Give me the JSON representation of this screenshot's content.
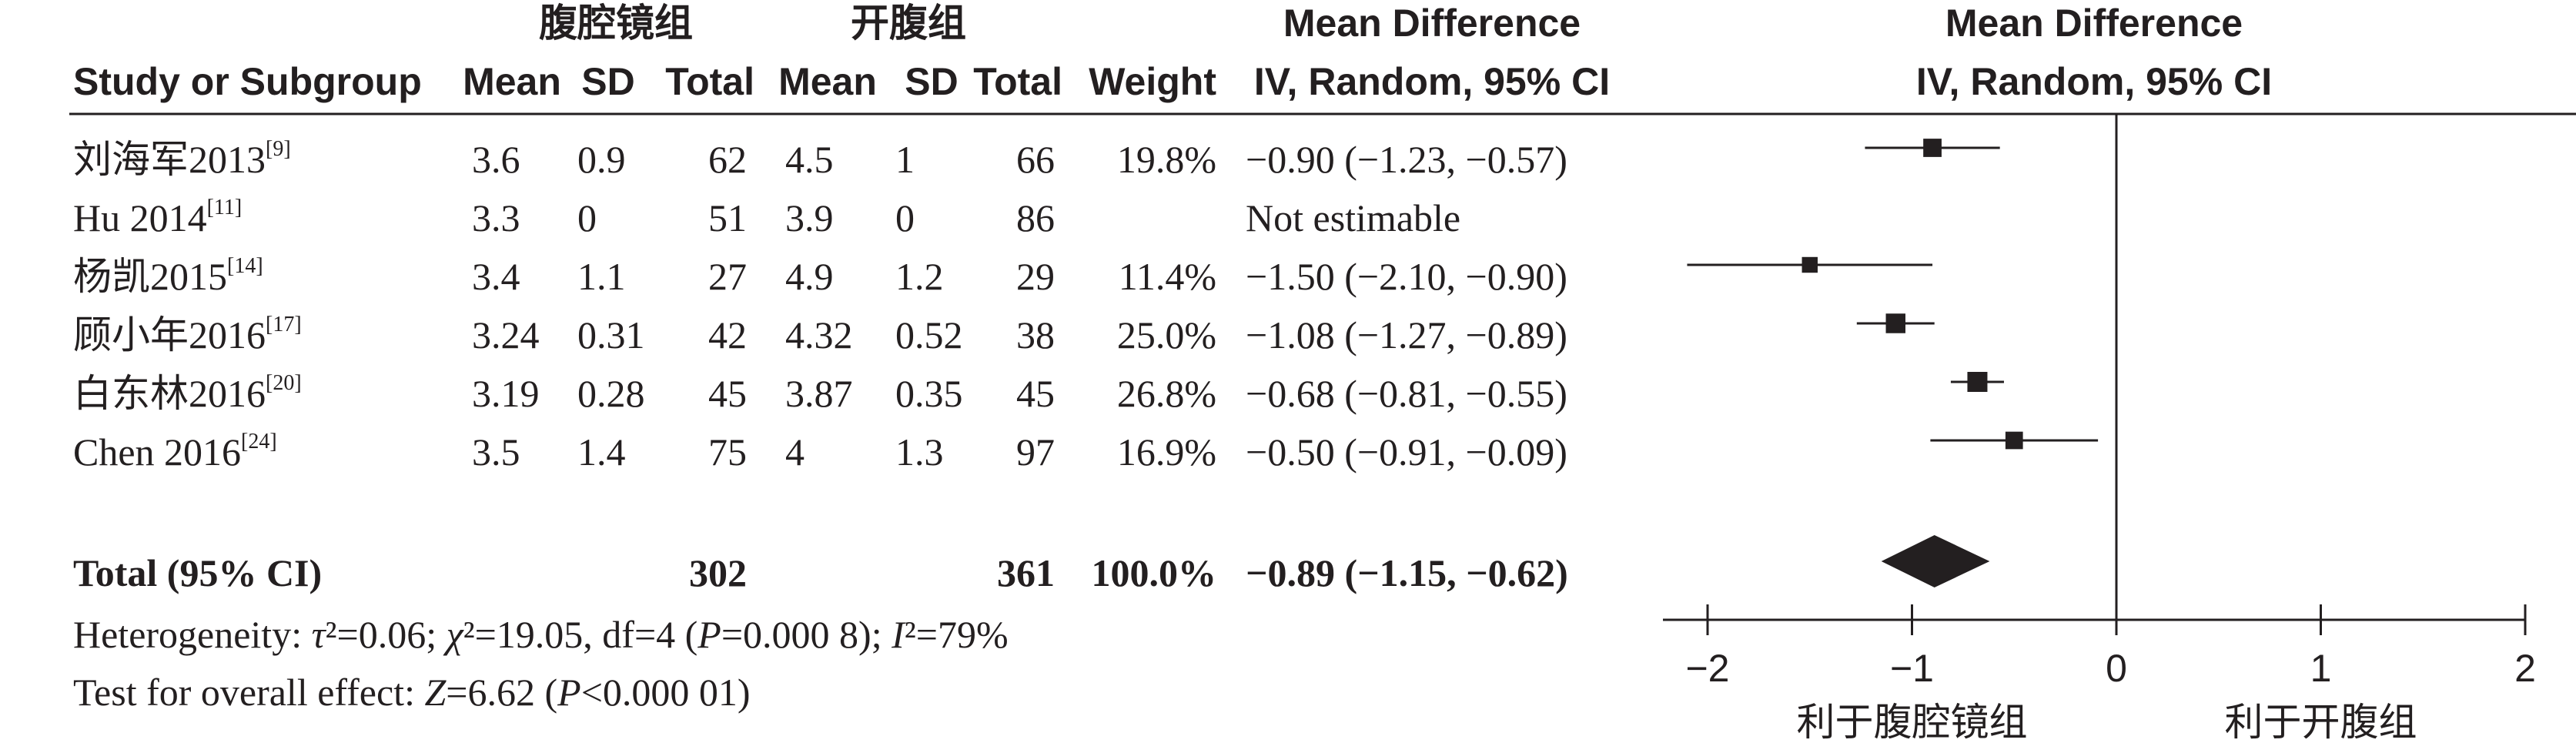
{
  "header": {
    "group1_name": "腹腔镜组",
    "group2_name": "开腹组",
    "effect_title": "Mean Difference",
    "effect_method": "IV, Random, 95% CI",
    "plot_title": "Mean Difference",
    "plot_method": "IV, Random, 95% CI",
    "col_study": "Study or Subgroup",
    "col_mean1": "Mean",
    "col_sd1": "SD",
    "col_total1": "Total",
    "col_mean2": "Mean",
    "col_sd2": "SD",
    "col_total2": "Total",
    "col_weight": "Weight"
  },
  "studies": [
    {
      "name": "刘海军2013",
      "ref": "[9]",
      "mean1": "3.6",
      "sd1": "0.9",
      "total1": "62",
      "mean2": "4.5",
      "sd2": "1",
      "total2": "66",
      "weight": "19.8%",
      "ci_text": "−0.90 (−1.23, −0.57)"
    },
    {
      "name": "Hu 2014",
      "ref": "[11]",
      "mean1": "3.3",
      "sd1": "0",
      "total1": "51",
      "mean2": "3.9",
      "sd2": "0",
      "total2": "86",
      "weight": "",
      "ci_text": "Not estimable"
    },
    {
      "name": "杨凯2015",
      "ref": "[14]",
      "mean1": "3.4",
      "sd1": "1.1",
      "total1": "27",
      "mean2": "4.9",
      "sd2": "1.2",
      "total2": "29",
      "weight": "11.4%",
      "ci_text": "−1.50 (−2.10, −0.90)"
    },
    {
      "name": "顾小年2016",
      "ref": "[17]",
      "mean1": "3.24",
      "sd1": "0.31",
      "total1": "42",
      "mean2": "4.32",
      "sd2": "0.52",
      "total2": "38",
      "weight": "25.0%",
      "ci_text": "−1.08 (−1.27, −0.89)"
    },
    {
      "name": "白东林2016",
      "ref": "[20]",
      "mean1": "3.19",
      "sd1": "0.28",
      "total1": "45",
      "mean2": "3.87",
      "sd2": "0.35",
      "total2": "45",
      "weight": "26.8%",
      "ci_text": "−0.68 (−0.81, −0.55)"
    },
    {
      "name": "Chen 2016",
      "ref": "[24]",
      "mean1": "3.5",
      "sd1": "1.4",
      "total1": "75",
      "mean2": "4",
      "sd2": "1.3",
      "total2": "97",
      "weight": "16.9%",
      "ci_text": "−0.50 (−0.91, −0.09)"
    }
  ],
  "total": {
    "label": "Total (95% CI)",
    "total1": "302",
    "total2": "361",
    "weight": "100.0%",
    "ci_text": "−0.89 (−1.15, −0.62)"
  },
  "footer": {
    "het_prefix": "Heterogeneity: ",
    "tau": "τ",
    "tau_rest": "²=0.06; ",
    "chi": "χ",
    "chi_rest": "²=19.05, df=4 (",
    "p1": "P",
    "p1_rest": "=0.000 8); ",
    "i": "I",
    "i_rest": "²=79%",
    "test_prefix": "Test for overall effect: ",
    "z": "Z",
    "z_rest": "=6.62 (",
    "p2": "P",
    "p2_rest": "<0.000 01)"
  },
  "colors": {
    "text": "#231f20",
    "marker": "#231f20"
  },
  "chart_data": {
    "type": "forest",
    "xlim": [
      -2,
      2
    ],
    "xticks": [
      -2,
      -1,
      0,
      1,
      2
    ],
    "xtick_labels": [
      "−2",
      "−1",
      "0",
      "1",
      "2"
    ],
    "favours_left": "利于腹腔镜组",
    "favours_right": "利于开腹组",
    "estimates": [
      {
        "study": "刘海军2013",
        "md": -0.9,
        "lo": -1.23,
        "hi": -0.57,
        "weight": 19.8
      },
      {
        "study": "Hu 2014",
        "md": null,
        "lo": null,
        "hi": null,
        "weight": null
      },
      {
        "study": "杨凯2015",
        "md": -1.5,
        "lo": -2.1,
        "hi": -0.9,
        "weight": 11.4
      },
      {
        "study": "顾小年2016",
        "md": -1.08,
        "lo": -1.27,
        "hi": -0.89,
        "weight": 25.0
      },
      {
        "study": "白东林2016",
        "md": -0.68,
        "lo": -0.81,
        "hi": -0.55,
        "weight": 26.8
      },
      {
        "study": "Chen 2016",
        "md": -0.5,
        "lo": -0.91,
        "hi": -0.09,
        "weight": 16.9
      }
    ],
    "pooled": {
      "md": -0.89,
      "lo": -1.15,
      "hi": -0.62
    }
  }
}
